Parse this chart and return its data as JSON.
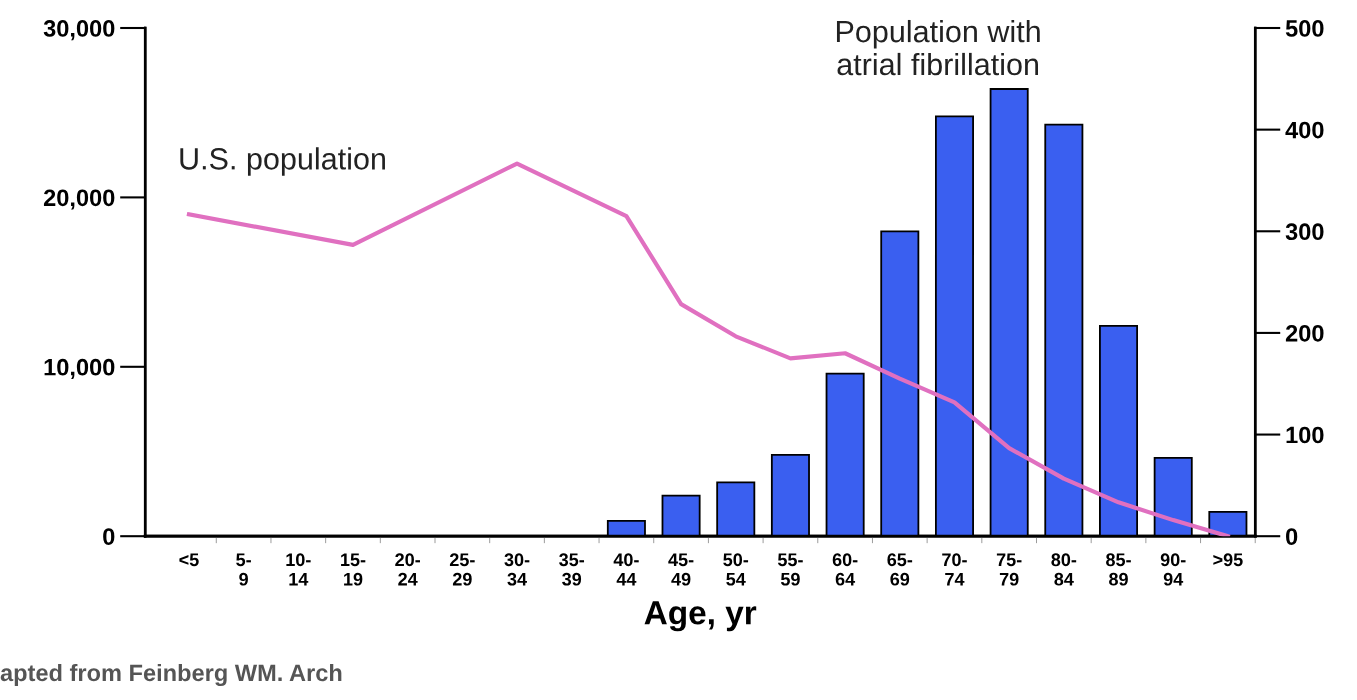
{
  "chart_data": {
    "type": "bar",
    "categories": [
      "<5",
      "5-\n9",
      "10-\n14",
      "15-\n19",
      "20-\n24",
      "25-\n29",
      "30-\n34",
      "35-\n39",
      "40-\n44",
      "45-\n49",
      "50-\n54",
      "55-\n59",
      "60-\n64",
      "65-\n69",
      "70-\n74",
      "75-\n79",
      "80-\n84",
      "85-\n89",
      "90-\n94",
      ">95"
    ],
    "series": [
      {
        "name": "U.S. population",
        "type": "line",
        "color": "#e070c0",
        "values": [
          19000,
          null,
          null,
          17200,
          null,
          null,
          22000,
          null,
          18900,
          13700,
          11800,
          10500,
          10800,
          9300,
          7900,
          5200,
          3400,
          2000,
          950,
          0
        ]
      },
      {
        "name": "Population with\natrial fibrillation",
        "axis": "y2",
        "color": "#3a5ff0",
        "values": [
          null,
          null,
          null,
          null,
          null,
          null,
          null,
          null,
          15,
          40,
          53,
          80,
          160,
          300,
          413,
          440,
          405,
          207,
          77,
          24
        ]
      }
    ],
    "xlabel": "Age, yr",
    "ylim": [
      0,
      30000
    ],
    "yticks": [
      {
        "value": 0,
        "label": "0"
      },
      {
        "value": 10000,
        "label": "10,000"
      },
      {
        "value": 20000,
        "label": "20,000"
      },
      {
        "value": 30000,
        "label": "30,000"
      }
    ],
    "y2lim": [
      0,
      500
    ],
    "y2ticks": [
      0,
      100,
      200,
      300,
      400,
      500
    ],
    "annotations": [
      "apted from Feinberg WM. Arch"
    ],
    "legend": false,
    "grid": false
  }
}
